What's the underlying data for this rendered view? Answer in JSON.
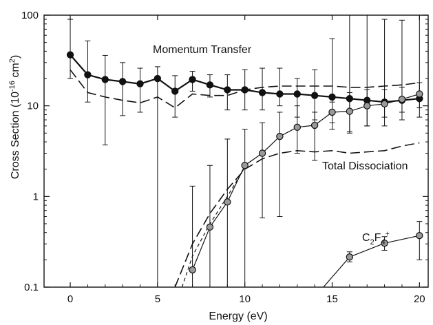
{
  "chart_data": {
    "type": "line",
    "title": "",
    "xlabel": "Energy (eV)",
    "ylabel_parts": {
      "prefix": "Cross Section (10",
      "exp": "-16",
      "mid": " cm",
      "exp2": "2",
      "suffix": ")"
    },
    "xlim": [
      -1.5,
      20.5
    ],
    "ylim": [
      0.1,
      100
    ],
    "yscale": "log",
    "grid": false,
    "x_ticks": [
      0,
      5,
      10,
      15,
      20
    ],
    "x_tick_labels": [
      "0",
      "5",
      "10",
      "15",
      "20"
    ],
    "y_ticks": [
      0.1,
      1,
      10,
      100
    ],
    "y_tick_labels": [
      "0.1",
      "1",
      "10",
      "100"
    ],
    "annotations": {
      "momentum": "Momentum Transfer",
      "dissociation": "Total Dissociation",
      "c2f4": {
        "base": "C",
        "sub1": "2",
        "mid": "F",
        "sub2": "4",
        "sup": "+"
      }
    },
    "series": [
      {
        "key": "momentum",
        "style": "solid-black-markers",
        "color": "#111111",
        "points": [
          {
            "x": 0,
            "y": 36.5,
            "err_low": 20.0,
            "err_high": 90.0
          },
          {
            "x": 1,
            "y": 22.0,
            "err_low": 11.0,
            "err_high": 52.0
          },
          {
            "x": 2,
            "y": 19.5,
            "err_low": 3.7,
            "err_high": 36.0
          },
          {
            "x": 3,
            "y": 18.5,
            "err_low": 7.8,
            "err_high": 30.0
          },
          {
            "x": 4,
            "y": 17.5,
            "err_low": 8.5,
            "err_high": 26.0
          },
          {
            "x": 5,
            "y": 20.0,
            "err_low": 0.1,
            "err_high": 27.0
          },
          {
            "x": 6,
            "y": 14.5,
            "err_low": 7.5,
            "err_high": 21.5
          },
          {
            "x": 7,
            "y": 19.5,
            "err_low": 14.5,
            "err_high": 24.0
          },
          {
            "x": 8,
            "y": 17.0,
            "err_low": 12.5,
            "err_high": 22.0
          },
          {
            "x": 9,
            "y": 15.0,
            "err_low": 9.0,
            "err_high": 22.0
          },
          {
            "x": 10,
            "y": 15.0,
            "err_low": 9.0,
            "err_high": 25.0
          },
          {
            "x": 11,
            "y": 14.0,
            "err_low": 9.0,
            "err_high": 26.0
          },
          {
            "x": 12,
            "y": 13.5,
            "err_low": 10.0,
            "err_high": 26.0
          },
          {
            "x": 13,
            "y": 13.5,
            "err_low": 7.5,
            "err_high": 20.0
          },
          {
            "x": 14,
            "y": 13.0,
            "err_low": 7.0,
            "err_high": 25.0
          },
          {
            "x": 15,
            "y": 12.5,
            "err_low": 5.5,
            "err_high": 55.0
          },
          {
            "x": 16,
            "y": 12.0,
            "err_low": 5.0,
            "err_high": 100.0
          },
          {
            "x": 17,
            "y": 11.5,
            "err_low": 6.0,
            "err_high": 100.0
          },
          {
            "x": 18,
            "y": 11.0,
            "err_low": 6.0,
            "err_high": 90.0
          },
          {
            "x": 19,
            "y": 11.5,
            "err_low": 7.0,
            "err_high": 88.0
          },
          {
            "x": 20,
            "y": 12.0,
            "err_low": 7.5,
            "err_high": 100.0
          }
        ]
      },
      {
        "key": "dissociation",
        "style": "gray-markers",
        "color": "#111111",
        "points": [
          {
            "x": 7,
            "y": 0.155,
            "err_low": 0.1,
            "err_high": 1.3
          },
          {
            "x": 8,
            "y": 0.46,
            "err_low": 0.1,
            "err_high": 2.2
          },
          {
            "x": 9,
            "y": 0.87,
            "err_low": 0.1,
            "err_high": 4.3
          },
          {
            "x": 10,
            "y": 2.2,
            "err_low": 0.1,
            "err_high": 5.5
          },
          {
            "x": 11,
            "y": 3.0,
            "err_low": 0.58,
            "err_high": 6.5
          },
          {
            "x": 12,
            "y": 4.6,
            "err_low": 0.6,
            "err_high": 8.5
          },
          {
            "x": 13,
            "y": 5.8,
            "err_low": 3.0,
            "err_high": 10.0
          },
          {
            "x": 14,
            "y": 6.1,
            "err_low": 2.5,
            "err_high": 8.5
          },
          {
            "x": 15,
            "y": 8.5,
            "err_low": 6.5,
            "err_high": 11.0
          },
          {
            "x": 16,
            "y": 8.7,
            "err_low": 5.2,
            "err_high": 14.0
          },
          {
            "x": 17,
            "y": 10.0,
            "err_low": 6.0,
            "err_high": 15.0
          },
          {
            "x": 18,
            "y": 10.5,
            "err_low": 7.5,
            "err_high": 15.0
          },
          {
            "x": 19,
            "y": 11.8,
            "err_low": 8.5,
            "err_high": 16.0
          },
          {
            "x": 20,
            "y": 13.5,
            "err_low": 9.5,
            "err_high": 18.0
          }
        ]
      },
      {
        "key": "c2f4",
        "style": "gray-markers",
        "color": "#111111",
        "points": [
          {
            "x": 16,
            "y": 0.215,
            "err_low": 0.19,
            "err_high": 0.245
          },
          {
            "x": 18,
            "y": 0.305,
            "err_low": 0.255,
            "err_high": 0.36
          },
          {
            "x": 20,
            "y": 0.37,
            "err_low": 0.2,
            "err_high": 0.53
          }
        ],
        "extra_line": [
          {
            "x": 14.5,
            "y": 0.1
          },
          {
            "x": 16,
            "y": 0.215
          }
        ]
      },
      {
        "key": "momentum-dash",
        "style": "dashed-long",
        "color": "#111111",
        "points": [
          {
            "x": 0,
            "y": 25.0
          },
          {
            "x": 1,
            "y": 14.0
          },
          {
            "x": 2,
            "y": 12.5
          },
          {
            "x": 3,
            "y": 11.5
          },
          {
            "x": 4,
            "y": 10.8
          },
          {
            "x": 5,
            "y": 12.5
          },
          {
            "x": 6,
            "y": 9.5
          },
          {
            "x": 7,
            "y": 13.5
          },
          {
            "x": 8,
            "y": 13.0
          },
          {
            "x": 9,
            "y": 13.0
          },
          {
            "x": 10,
            "y": 15.0
          },
          {
            "x": 11,
            "y": 16.0
          },
          {
            "x": 12,
            "y": 16.5
          },
          {
            "x": 13,
            "y": 16.5
          },
          {
            "x": 14,
            "y": 16.5
          },
          {
            "x": 15,
            "y": 16.5
          },
          {
            "x": 16,
            "y": 16.0
          },
          {
            "x": 17,
            "y": 16.0
          },
          {
            "x": 18,
            "y": 16.5
          },
          {
            "x": 19,
            "y": 17.0
          },
          {
            "x": 20,
            "y": 18.0
          }
        ]
      },
      {
        "key": "dissoc-dash",
        "style": "dashed-long",
        "color": "#111111",
        "points": [
          {
            "x": 6.0,
            "y": 0.1
          },
          {
            "x": 7.0,
            "y": 0.3
          },
          {
            "x": 8.0,
            "y": 0.65
          },
          {
            "x": 9.0,
            "y": 1.2
          },
          {
            "x": 10.0,
            "y": 2.0
          },
          {
            "x": 11.0,
            "y": 2.6
          },
          {
            "x": 12.0,
            "y": 3.0
          },
          {
            "x": 13.0,
            "y": 3.2
          },
          {
            "x": 14.0,
            "y": 3.1
          },
          {
            "x": 15.0,
            "y": 3.2
          },
          {
            "x": 16.0,
            "y": 3.0
          },
          {
            "x": 17.0,
            "y": 3.1
          },
          {
            "x": 18.0,
            "y": 3.2
          },
          {
            "x": 19.0,
            "y": 3.6
          },
          {
            "x": 20.0,
            "y": 3.9
          }
        ]
      },
      {
        "key": "dissoc-dash-2",
        "style": "dashed-short",
        "color": "#111111",
        "points": [
          {
            "x": 6.4,
            "y": 0.1
          },
          {
            "x": 7.0,
            "y": 0.22
          },
          {
            "x": 8.0,
            "y": 0.5
          },
          {
            "x": 9.0,
            "y": 1.0
          },
          {
            "x": 10.0,
            "y": 2.1
          }
        ]
      }
    ]
  }
}
